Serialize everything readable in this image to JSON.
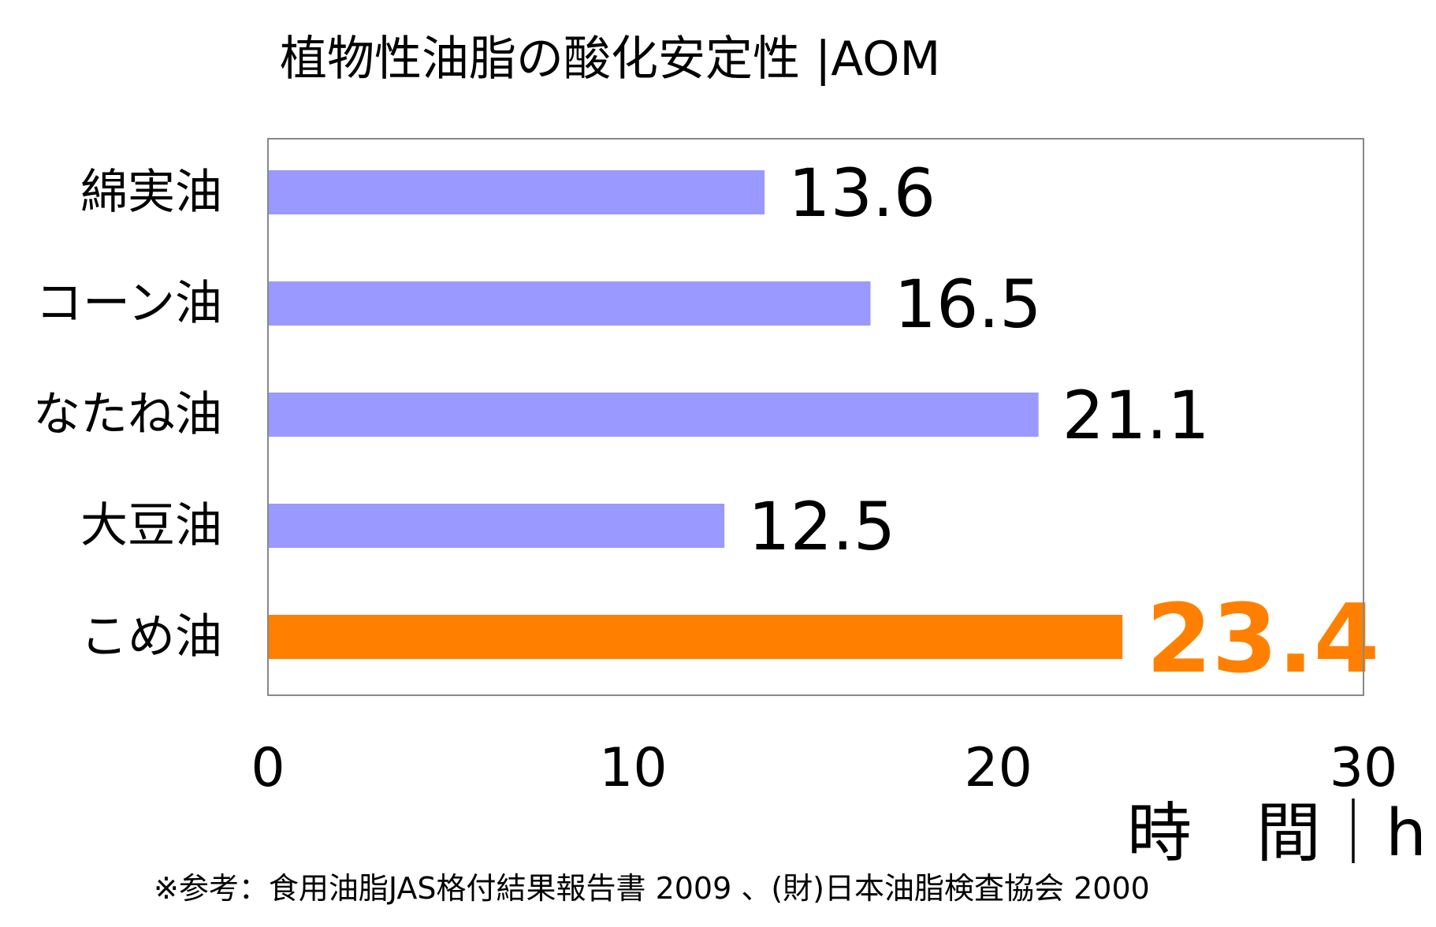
{
  "chart_data": {
    "type": "bar",
    "orientation": "horizontal",
    "title": "植物性油脂の酸化安定性 |AOM",
    "categories": [
      "綿実油",
      "コーン油",
      "なたね油",
      "大豆油",
      "こめ油"
    ],
    "values": [
      13.6,
      16.5,
      21.1,
      12.5,
      23.4
    ],
    "value_labels": [
      "13.6",
      "16.5",
      "21.1",
      "12.5",
      "23.4"
    ],
    "highlight_index": 4,
    "xlim": [
      0,
      30
    ],
    "x_ticks": [
      0,
      10,
      20,
      30
    ],
    "x_tick_labels": [
      "0",
      "10",
      "20",
      "30"
    ],
    "xlabel": "時　間｜h",
    "ylabel": "",
    "grid": false,
    "legend": "none",
    "colors": {
      "bar": "#9999ff",
      "highlight_bar": "#ff8000",
      "highlight_label": "#ff8000",
      "text": "#000000",
      "frame": "#888888"
    }
  },
  "footnote": "※参考：食用油脂JAS格付結果報告書 2009 、(財)日本油脂検査協会 2000"
}
